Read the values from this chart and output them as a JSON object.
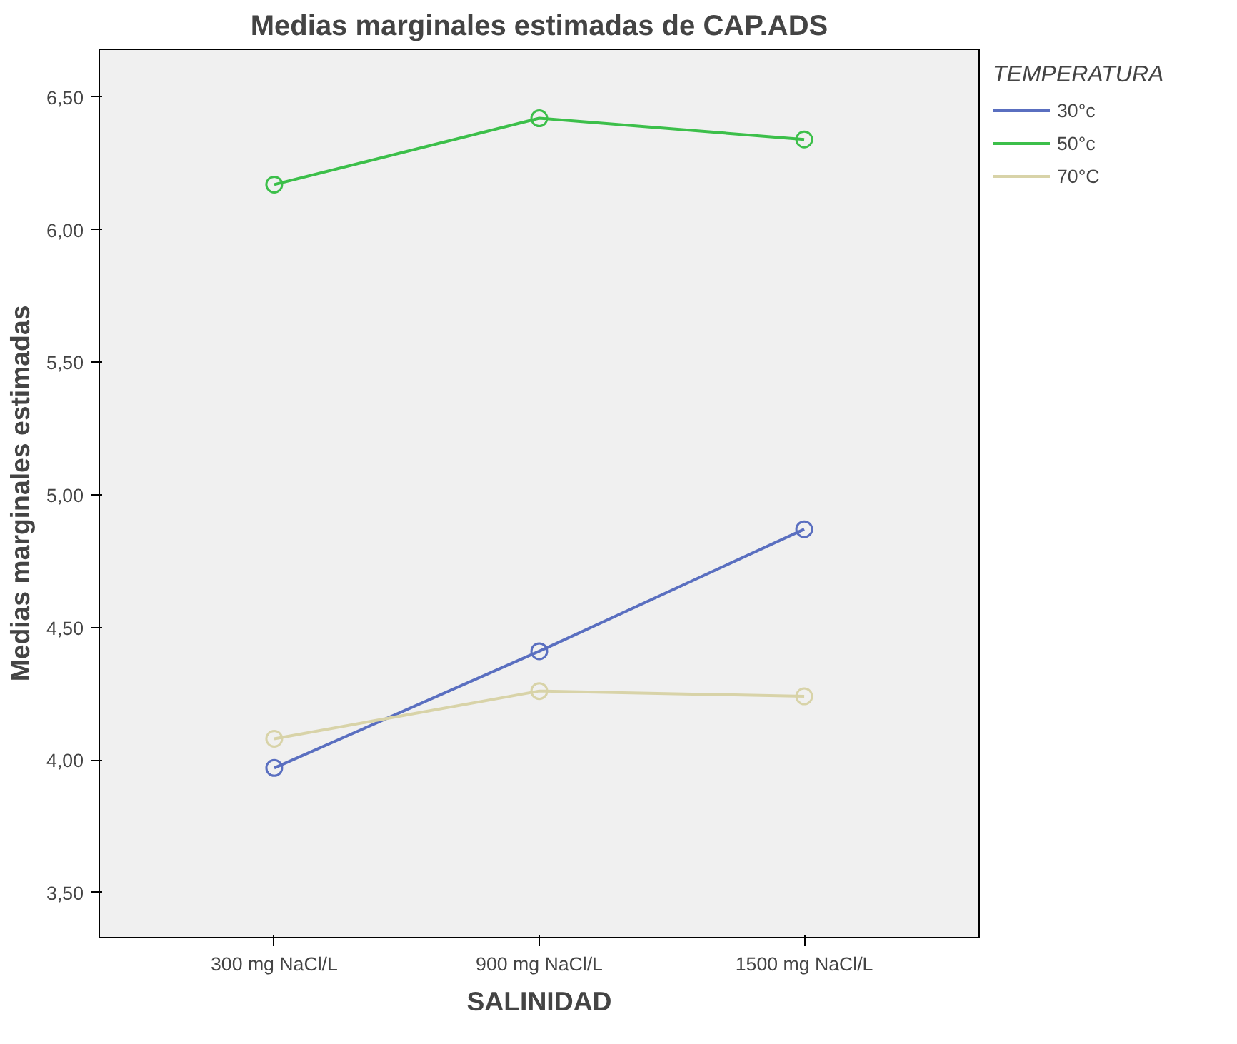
{
  "chart_data": {
    "type": "line",
    "title": "Medias marginales estimadas de CAP.ADS",
    "xlabel": "SALINIDAD",
    "ylabel": "Medias marginales estimadas",
    "legend_title": "TEMPERATURA",
    "categories": [
      "300 mg NaCl/L",
      "900 mg NaCl/L",
      "1500 mg NaCl/L"
    ],
    "series": [
      {
        "name": "30°c",
        "color": "#5a6fc0",
        "values": [
          3.97,
          4.41,
          4.87
        ]
      },
      {
        "name": "50°c",
        "color": "#3cbf4a",
        "values": [
          6.17,
          6.42,
          6.34
        ]
      },
      {
        "name": "70°C",
        "color": "#d8d3a8",
        "values": [
          4.08,
          4.26,
          4.24
        ]
      }
    ],
    "ylim": [
      3.33,
      6.68
    ],
    "yticks": [
      {
        "value": 3.5,
        "label": "3,50"
      },
      {
        "value": 4.0,
        "label": "4,00"
      },
      {
        "value": 4.5,
        "label": "4,50"
      },
      {
        "value": 5.0,
        "label": "5,00"
      },
      {
        "value": 5.5,
        "label": "5,50"
      },
      {
        "value": 6.0,
        "label": "6,00"
      },
      {
        "value": 6.5,
        "label": "6,50"
      }
    ],
    "marker": "circle",
    "line_style": "solid",
    "grid": false,
    "legend": "top right"
  }
}
